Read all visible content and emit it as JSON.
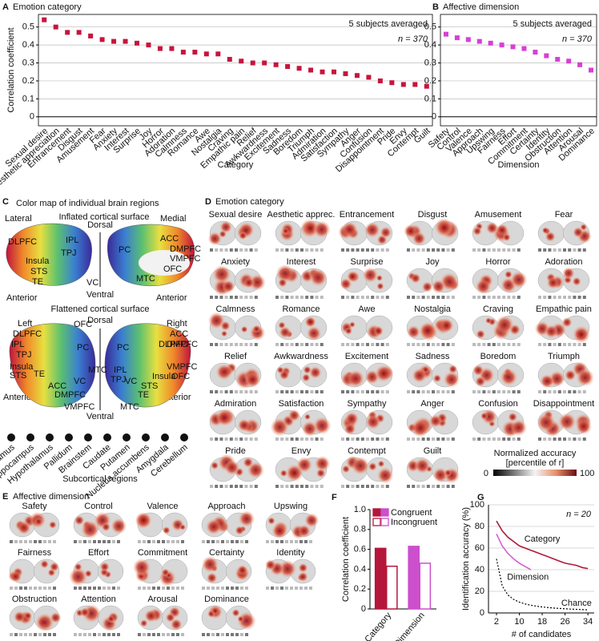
{
  "chart_data": [
    {
      "panel": "A",
      "type": "dot",
      "title": "Emotion category",
      "note": "5 subjects averaged",
      "n_label": "n = 370",
      "ylabel": "Correlation coefficient",
      "xlabel": "Category",
      "categories": [
        "Sexual desire",
        "Aesthetic appreciation",
        "Entrancement",
        "Disgust",
        "Amusement",
        "Fear",
        "Anxiety",
        "Interest",
        "Surprise",
        "Joy",
        "Horror",
        "Adoration",
        "Calmness",
        "Romance",
        "Awe",
        "Nostalgia",
        "Craving",
        "Empathic pain",
        "Relief",
        "Awkwardness",
        "Excitement",
        "Sadness",
        "Boredom",
        "Triumph",
        "Admiration",
        "Satisfaction",
        "Sympathy",
        "Anger",
        "Confusion",
        "Disappointment",
        "Pride",
        "Envy",
        "Contempt",
        "Guilt"
      ],
      "values": [
        0.54,
        0.5,
        0.47,
        0.47,
        0.45,
        0.43,
        0.42,
        0.42,
        0.41,
        0.4,
        0.38,
        0.38,
        0.36,
        0.36,
        0.35,
        0.35,
        0.32,
        0.31,
        0.3,
        0.3,
        0.29,
        0.28,
        0.27,
        0.26,
        0.25,
        0.25,
        0.24,
        0.23,
        0.22,
        0.2,
        0.19,
        0.18,
        0.18,
        0.17
      ],
      "color": "#c8143c",
      "ylim": [
        -0.05,
        0.57
      ],
      "yticks": [
        0,
        0.1,
        0.2,
        0.3,
        0.4,
        0.5
      ],
      "grid": true
    },
    {
      "panel": "B",
      "type": "dot",
      "title": "Affective dimension",
      "note": "5 subjects averaged",
      "n_label": "n = 370",
      "xlabel": "Dimension",
      "categories": [
        "Safety",
        "Control",
        "Valence",
        "Approach",
        "Upswing",
        "Fairness",
        "Effort",
        "Commitment",
        "Certainty",
        "Identity",
        "Obstruction",
        "Attention",
        "Arousal",
        "Dominance"
      ],
      "values": [
        0.46,
        0.44,
        0.43,
        0.42,
        0.41,
        0.4,
        0.39,
        0.38,
        0.36,
        0.34,
        0.32,
        0.31,
        0.29,
        0.26
      ],
      "color": "#d63fd6",
      "ylim": [
        -0.05,
        0.57
      ],
      "yticks": [
        0,
        0.1,
        0.2,
        0.3,
        0.4,
        0.5
      ],
      "grid": true
    },
    {
      "panel": "F",
      "type": "bar",
      "ylabel": "Correlation coefficient",
      "categories": [
        "Category",
        "Dimension"
      ],
      "series": [
        {
          "name": "Congruent",
          "colors": [
            "#b5173a",
            "#cc4fcc"
          ],
          "values": [
            0.61,
            0.63
          ],
          "fill": true
        },
        {
          "name": "Incongruent",
          "colors": [
            "#b5173a",
            "#cc4fcc"
          ],
          "values": [
            0.43,
            0.46
          ],
          "fill": false
        }
      ],
      "ylim": [
        0,
        1
      ],
      "yticks": [
        0,
        0.2,
        0.4,
        0.6,
        0.8,
        {
          "value": 1,
          "label": "1.0"
        }
      ]
    },
    {
      "panel": "G",
      "type": "line",
      "ylabel": "Identification accuracy (%)",
      "xlabel": "# of candidates",
      "n_label": "n = 20",
      "x": [
        2,
        4,
        6,
        8,
        10,
        12,
        14,
        16,
        18,
        20,
        22,
        24,
        26,
        28,
        30,
        32,
        34
      ],
      "series": [
        {
          "name": "Category",
          "color": "#b01a3a",
          "line_style": "solid",
          "values": [
            85,
            76,
            70,
            66,
            62,
            60,
            58,
            56,
            54,
            52,
            50,
            48,
            46,
            45,
            44,
            42,
            41
          ]
        },
        {
          "name": "Dimension",
          "color": "#d45fd4",
          "line_style": "solid",
          "values": [
            73,
            62,
            55,
            50,
            46,
            43,
            40,
            null,
            null,
            null,
            null,
            null,
            null,
            null,
            null,
            null,
            null
          ]
        },
        {
          "name": "Chance",
          "color": "#000000",
          "line_style": "dotted",
          "values": [
            50,
            25,
            16.67,
            12.5,
            10,
            8.33,
            7.14,
            6.25,
            5.56,
            5,
            4.55,
            4.17,
            3.85,
            3.57,
            3.33,
            3.13,
            2.94
          ]
        }
      ],
      "xlim": [
        -0.8,
        36.2
      ],
      "xticks": [
        2,
        10,
        18,
        26,
        34
      ],
      "ylim": [
        0,
        100
      ],
      "yticks": [
        0,
        20,
        40,
        60,
        80,
        100
      ],
      "grid": true
    }
  ],
  "panel_c": {
    "letter": "C",
    "title": "Color map of individual brain regions",
    "inflated_title": "Inflated cortical surface",
    "lateral": "Lateral",
    "medial": "Medial",
    "dorsal": "Dorsal",
    "ventral": "Ventral",
    "anterior": "Anterior",
    "flattened_title": "Flattened cortical surface",
    "left": "Left",
    "right": "Right",
    "regions": [
      "DLPFC",
      "IPL",
      "TPJ",
      "Insula",
      "STS",
      "TE",
      "ACC",
      "DMPFC",
      "VMPFC",
      "OFC",
      "PC",
      "VC",
      "MTC"
    ],
    "subcortical": [
      "Thalamus",
      "Hippocampus",
      "Hypothalamus",
      "Pallidum",
      "Brainstem",
      "Caudate",
      "Putamen",
      "Nucleus accumbens",
      "Amygdala",
      "Cerebellum"
    ],
    "subcortical_title": "Subcortical regions"
  },
  "panel_d": {
    "letter": "D",
    "title": "Emotion category",
    "items": [
      "Sexual desire",
      "Aesthetic apprec.",
      "Entrancement",
      "Disgust",
      "Amusement",
      "Fear",
      "Anxiety",
      "Interest",
      "Surprise",
      "Joy",
      "Horror",
      "Adoration",
      "Calmness",
      "Romance",
      "Awe",
      "Nostalgia",
      "Craving",
      "Empathic pain",
      "Relief",
      "Awkwardness",
      "Excitement",
      "Sadness",
      "Boredom",
      "Triumph",
      "Admiration",
      "Satisfaction",
      "Sympathy",
      "Anger",
      "Confusion",
      "Disappointment",
      "Pride",
      "Envy",
      "Contempt",
      "Guilt"
    ],
    "legend_title": "Normalized accuracy",
    "legend_subtitle": "[percentile of r]",
    "legend_min": 0,
    "legend_max": 100
  },
  "panel_e": {
    "letter": "E",
    "title": "Affective dimension",
    "items": [
      "Safety",
      "Control",
      "Valence",
      "Approach",
      "Upswing",
      "Fairness",
      "Effort",
      "Commitment",
      "Certainty",
      "Identity",
      "Obstruction",
      "Attention",
      "Arousal",
      "Dominance"
    ]
  }
}
